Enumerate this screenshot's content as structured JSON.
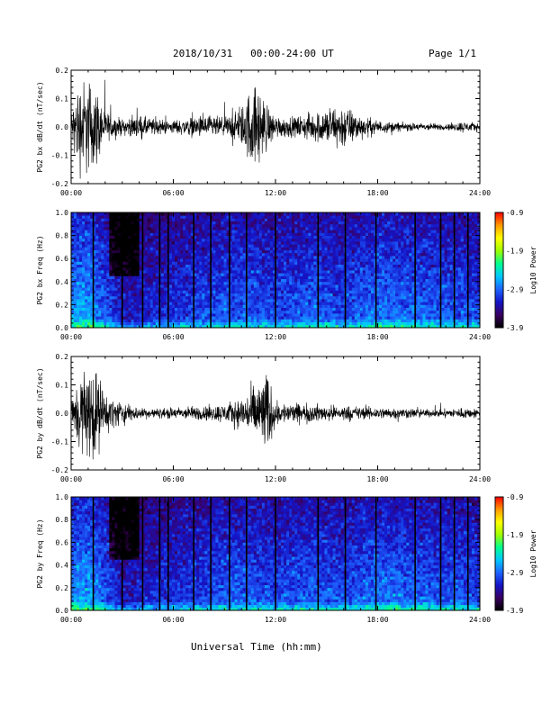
{
  "header": {
    "title": "2018/10/31   00:00-24:00 UT",
    "page": "Page 1/1"
  },
  "x_axis_title": "Universal Time (hh:mm)",
  "colors": {
    "trace": "#000000",
    "colormap": [
      "#000000",
      "#3a0060",
      "#1414c8",
      "#1e64ff",
      "#00c8ff",
      "#00ff90",
      "#a0ff00",
      "#ffff00",
      "#ff9a00",
      "#ff0000"
    ]
  },
  "chart_data": [
    {
      "type": "line",
      "ylabel": "PG2 bx dB/dt (nT/sec)",
      "x_ticks": [
        "00:00",
        "06:00",
        "12:00",
        "18:00",
        "24:00"
      ],
      "xlim_hours": [
        0,
        24
      ],
      "ylim": [
        -0.2,
        0.2
      ],
      "y_ticks": [
        "0.2",
        "0.1",
        "0.0",
        "-0.1",
        "-0.2"
      ],
      "envelope": {
        "hours": [
          0,
          0.5,
          1,
          1.5,
          2,
          3,
          4,
          5,
          6,
          7,
          8,
          9,
          10,
          10.5,
          11,
          11.5,
          12,
          13,
          14,
          15,
          16,
          17,
          18,
          19,
          20,
          21,
          22,
          23,
          24
        ],
        "amplitude": [
          0.08,
          0.25,
          0.25,
          0.2,
          0.08,
          0.04,
          0.06,
          0.04,
          0.035,
          0.05,
          0.06,
          0.05,
          0.1,
          0.2,
          0.22,
          0.12,
          0.06,
          0.05,
          0.07,
          0.1,
          0.12,
          0.06,
          0.035,
          0.025,
          0.02,
          0.02,
          0.015,
          0.03,
          0.02
        ]
      }
    },
    {
      "type": "heatmap",
      "ylabel": "PG2 bx Freq (Hz)",
      "x_ticks": [
        "00:00",
        "06:00",
        "12:00",
        "18:00",
        "24:00"
      ],
      "xlim_hours": [
        0,
        24
      ],
      "ylim": [
        0.0,
        1.0
      ],
      "y_ticks": [
        "1.0",
        "0.8",
        "0.6",
        "0.4",
        "0.2",
        "0.0"
      ],
      "colorbar": {
        "label": "Log10 Power",
        "range": [
          -3.9,
          -0.9
        ],
        "ticks": [
          "-0.9",
          "-1.9",
          "-2.9",
          "-3.9"
        ]
      },
      "gap_lines_hours": [
        1.3,
        3.0,
        4.2,
        5.2,
        5.7,
        7.2,
        8.2,
        9.3,
        10.3,
        12.0,
        14.5,
        16.1,
        17.9,
        20.2,
        21.7,
        22.5,
        23.3
      ]
    },
    {
      "type": "line",
      "ylabel": "PG2 by dB/dt (nT/sec)",
      "x_ticks": [
        "00:00",
        "06:00",
        "12:00",
        "18:00",
        "24:00"
      ],
      "xlim_hours": [
        0,
        24
      ],
      "ylim": [
        -0.2,
        0.2
      ],
      "y_ticks": [
        "0.2",
        "0.1",
        "0.0",
        "-0.1",
        "-0.2"
      ],
      "envelope": {
        "hours": [
          0,
          0.5,
          1,
          1.5,
          2,
          3,
          4,
          5,
          6,
          7,
          8,
          9,
          10,
          10.5,
          11,
          11.5,
          12,
          13,
          14,
          15,
          16,
          17,
          18,
          19,
          20,
          21,
          22,
          23,
          24
        ],
        "amplitude": [
          0.05,
          0.22,
          0.25,
          0.22,
          0.1,
          0.06,
          0.03,
          0.025,
          0.03,
          0.035,
          0.04,
          0.05,
          0.08,
          0.12,
          0.18,
          0.22,
          0.06,
          0.05,
          0.05,
          0.04,
          0.04,
          0.035,
          0.03,
          0.03,
          0.025,
          0.02,
          0.02,
          0.03,
          0.02
        ]
      }
    },
    {
      "type": "heatmap",
      "ylabel": "PG2 by Freq (Hz)",
      "x_ticks": [
        "00:00",
        "06:00",
        "12:00",
        "18:00",
        "24:00"
      ],
      "xlim_hours": [
        0,
        24
      ],
      "ylim": [
        0.0,
        1.0
      ],
      "y_ticks": [
        "1.0",
        "0.8",
        "0.6",
        "0.4",
        "0.2",
        "0.0"
      ],
      "colorbar": {
        "label": "Log10 Power",
        "range": [
          -3.9,
          -0.9
        ],
        "ticks": [
          "-0.9",
          "-1.9",
          "-2.9",
          "-3.9"
        ]
      },
      "gap_lines_hours": [
        1.3,
        3.0,
        4.2,
        5.2,
        5.7,
        7.2,
        8.2,
        9.3,
        10.3,
        12.0,
        14.5,
        16.1,
        17.9,
        20.2,
        21.7,
        22.5,
        23.3
      ]
    }
  ]
}
